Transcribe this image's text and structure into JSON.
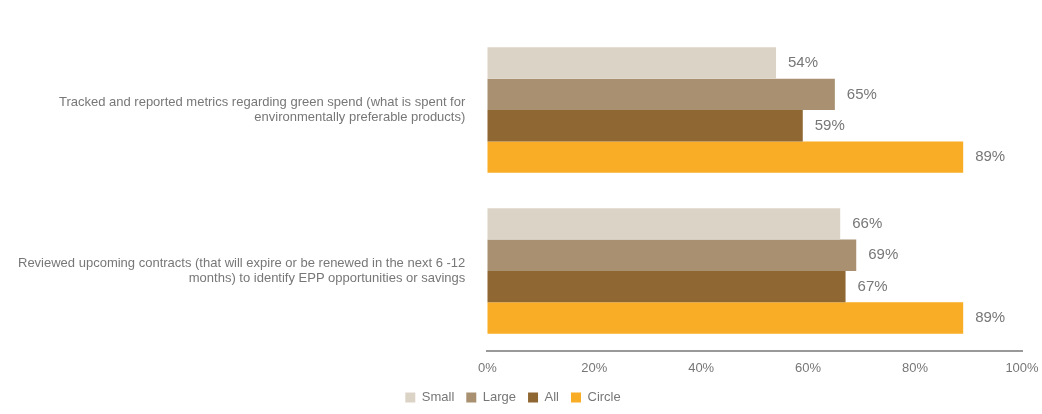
{
  "chart_data": {
    "type": "bar",
    "orientation": "horizontal",
    "categories": [
      "Tracked and reported metrics regarding green spend (what is spent for environmentally preferable products)",
      "Reviewed upcoming contracts (that will expire or be renewed in the next 6 -12 months) to identify EPP opportunities or savings"
    ],
    "series": [
      {
        "name": "Small",
        "color": "#dcd3c7",
        "values": [
          54,
          66
        ],
        "value_labels": [
          "54%",
          "66%"
        ]
      },
      {
        "name": "Large",
        "color": "#a89070",
        "values": [
          65,
          69
        ],
        "value_labels": [
          "65%",
          "69%"
        ]
      },
      {
        "name": "All",
        "color": "#8f6732",
        "values": [
          59,
          67
        ],
        "value_labels": [
          "59%",
          "67%"
        ]
      },
      {
        "name": "Circle",
        "color": "#f9ac25",
        "values": [
          89,
          89
        ],
        "value_labels": [
          "89%",
          "89%"
        ]
      }
    ],
    "xlim": [
      0,
      100
    ],
    "xticks": [
      {
        "value": 0,
        "label": "0%"
      },
      {
        "value": 20,
        "label": "20%"
      },
      {
        "value": 40,
        "label": "40%"
      },
      {
        "value": 60,
        "label": "60%"
      },
      {
        "value": 80,
        "label": "80%"
      },
      {
        "value": 100,
        "label": "100%"
      }
    ],
    "grid": false,
    "legend": "bottom"
  }
}
